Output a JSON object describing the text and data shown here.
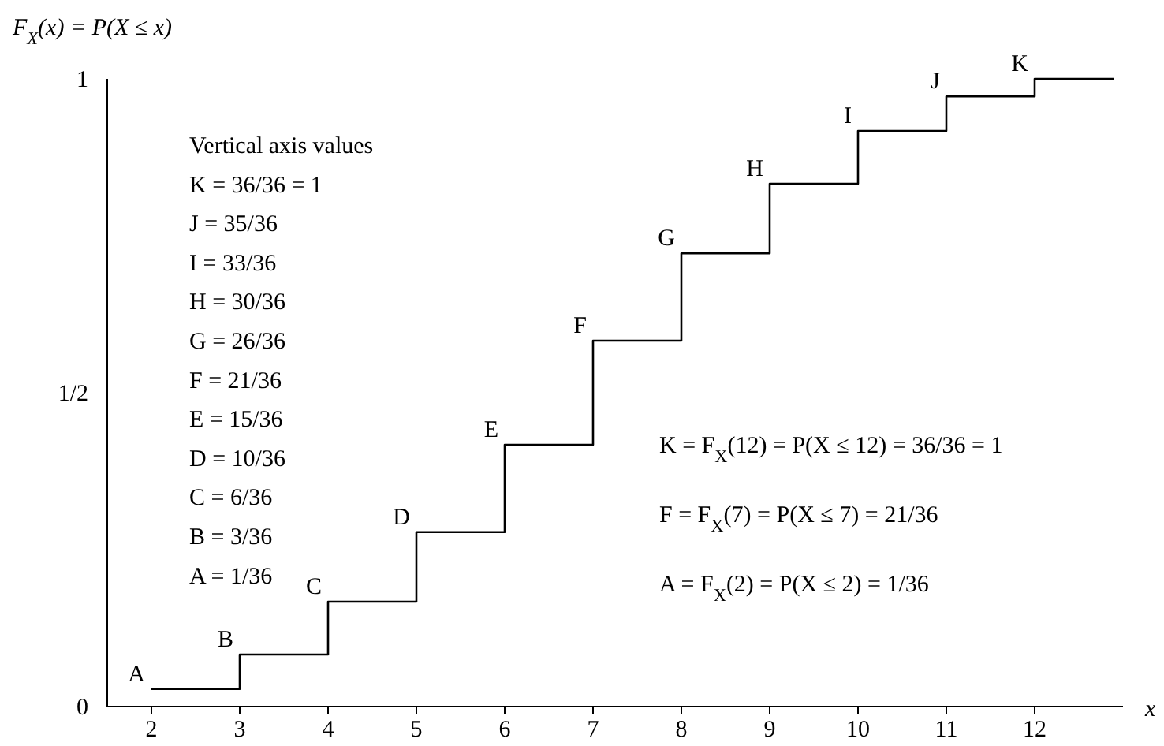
{
  "chart_data": {
    "type": "step",
    "ylabel": "F$_{X}$(x) = P(X ≤ x)",
    "xlabel": "x",
    "x": [
      2,
      3,
      4,
      5,
      6,
      7,
      8,
      9,
      10,
      11,
      12,
      12.9
    ],
    "values": [
      0.028,
      0.083,
      0.167,
      0.278,
      0.417,
      0.583,
      0.722,
      0.833,
      0.917,
      0.972,
      1,
      1
    ],
    "color": "#000000",
    "xlim": [
      1.5,
      13
    ],
    "xticks": [
      2,
      3,
      4,
      5,
      6,
      7,
      8,
      9,
      10,
      11,
      12
    ],
    "ylim": [
      0,
      1
    ],
    "yticks": [
      0,
      {
        "value": 0.5,
        "label": "1/2"
      },
      1
    ],
    "grid": false,
    "marker": "none",
    "line_style": "solid",
    "annotations": [
      "Vertical axis values",
      "K = 36/36 = 1",
      "J = 35/36",
      "I = 33/36",
      "H = 30/36",
      "G = 26/36",
      "F = 21/36",
      "E = 15/36",
      "D = 10/36",
      "C = 6/36",
      "B = 3/36",
      "A = 1/36",
      "K = F$_{X}$(12) = P(X ≤ 12) = 36/36 = 1",
      "F = F$_{X}$(7) = P(X ≤ 7) = 21/36",
      "A = F$_{X}$(2) = P(X ≤ 2) = 1/36",
      {
        "text": "A",
        "x": 2,
        "y": 0.028
      },
      {
        "text": "B",
        "x": 3,
        "y": 0.083
      },
      {
        "text": "C",
        "x": 4,
        "y": 0.167
      },
      {
        "text": "D",
        "x": 5,
        "y": 0.278
      },
      {
        "text": "E",
        "x": 6,
        "y": 0.417
      },
      {
        "text": "F",
        "x": 7,
        "y": 0.583
      },
      {
        "text": "G",
        "x": 8,
        "y": 0.722
      },
      {
        "text": "H",
        "x": 9,
        "y": 0.833
      },
      {
        "text": "I",
        "x": 10,
        "y": 0.917
      },
      {
        "text": "J",
        "x": 11,
        "y": 0.972
      },
      {
        "text": "K",
        "x": 12,
        "y": 1
      }
    ]
  }
}
